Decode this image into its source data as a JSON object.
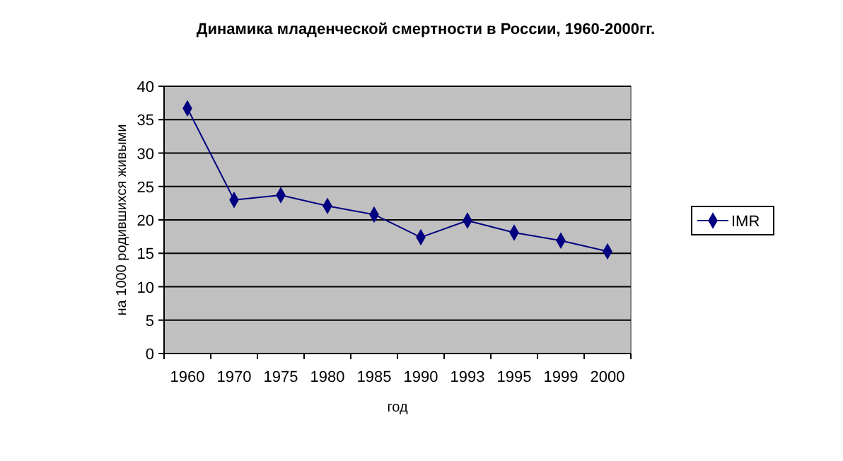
{
  "chart_data": {
    "type": "line",
    "title": "Динамика младенческой смертности в России, 1960-2000гг.",
    "xlabel": "год",
    "ylabel": "на 1000 родившихся живыми",
    "categories": [
      "1960",
      "1970",
      "1975",
      "1980",
      "1985",
      "1990",
      "1993",
      "1995",
      "1999",
      "2000"
    ],
    "series": [
      {
        "name": "IMR",
        "color": "#000080",
        "values": [
          36.7,
          23.0,
          23.7,
          22.1,
          20.8,
          17.4,
          19.9,
          18.1,
          16.9,
          15.3
        ]
      }
    ],
    "ylim": [
      0,
      40
    ],
    "yticks": [
      0,
      5,
      10,
      15,
      20,
      25,
      30,
      35,
      40
    ],
    "grid": "y",
    "legend": "right",
    "marker": "diamond"
  }
}
